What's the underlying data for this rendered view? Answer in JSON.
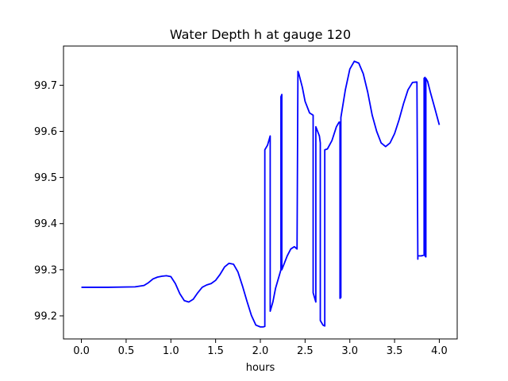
{
  "chart_data": {
    "type": "line",
    "title": "Water Depth h at gauge 120",
    "xlabel": "hours",
    "ylabel": "",
    "xlim": [
      -0.2,
      4.2
    ],
    "ylim": [
      99.15,
      99.785
    ],
    "xticks": [
      0.0,
      0.5,
      1.0,
      1.5,
      2.0,
      2.5,
      3.0,
      3.5,
      4.0
    ],
    "xtick_labels": [
      "0.0",
      "0.5",
      "1.0",
      "1.5",
      "2.0",
      "2.5",
      "3.0",
      "3.5",
      "4.0"
    ],
    "yticks": [
      99.2,
      99.3,
      99.4,
      99.5,
      99.6,
      99.7
    ],
    "ytick_labels": [
      "99.2",
      "99.3",
      "99.4",
      "99.5",
      "99.6",
      "99.7"
    ],
    "grid": false,
    "legend": "none",
    "series": [
      {
        "color": "#0000ff",
        "x": [
          0.0,
          0.3,
          0.6,
          0.7,
          0.75,
          0.8,
          0.85,
          0.9,
          0.95,
          1.0,
          1.05,
          1.1,
          1.15,
          1.2,
          1.25,
          1.3,
          1.35,
          1.4,
          1.45,
          1.5,
          1.55,
          1.6,
          1.65,
          1.7,
          1.75,
          1.8,
          1.85,
          1.9,
          1.95,
          2.0,
          2.03,
          2.05,
          2.05,
          2.08,
          2.11,
          2.11,
          2.14,
          2.17,
          2.2,
          2.23,
          2.23,
          2.24,
          2.24,
          2.26,
          2.3,
          2.34,
          2.38,
          2.41,
          2.42,
          2.43,
          2.47,
          2.5,
          2.55,
          2.59,
          2.59,
          2.62,
          2.62,
          2.66,
          2.67,
          2.67,
          2.7,
          2.72,
          2.72,
          2.75,
          2.8,
          2.85,
          2.88,
          2.89,
          2.89,
          2.9,
          2.9,
          2.95,
          3.0,
          3.05,
          3.1,
          3.15,
          3.2,
          3.25,
          3.3,
          3.35,
          3.4,
          3.45,
          3.5,
          3.55,
          3.6,
          3.65,
          3.7,
          3.75,
          3.76,
          3.76,
          3.8,
          3.83,
          3.83,
          3.84,
          3.84,
          3.85,
          3.85,
          3.87,
          3.9,
          3.95,
          4.0
        ],
        "y": [
          99.262,
          99.262,
          99.263,
          99.266,
          99.272,
          99.28,
          99.284,
          99.286,
          99.287,
          99.285,
          99.27,
          99.248,
          99.233,
          99.23,
          99.236,
          99.25,
          99.262,
          99.267,
          99.27,
          99.277,
          99.29,
          99.306,
          99.314,
          99.312,
          99.295,
          99.265,
          99.232,
          99.201,
          99.18,
          99.176,
          99.176,
          99.177,
          99.56,
          99.57,
          99.59,
          99.21,
          99.23,
          99.26,
          99.28,
          99.3,
          99.675,
          99.68,
          99.3,
          99.31,
          99.33,
          99.345,
          99.35,
          99.345,
          99.73,
          99.725,
          99.695,
          99.665,
          99.64,
          99.635,
          99.25,
          99.23,
          99.61,
          99.59,
          99.575,
          99.19,
          99.18,
          99.178,
          99.56,
          99.562,
          99.58,
          99.61,
          99.62,
          99.62,
          99.238,
          99.24,
          99.63,
          99.69,
          99.735,
          99.752,
          99.748,
          99.725,
          99.685,
          99.635,
          99.6,
          99.575,
          99.567,
          99.575,
          99.595,
          99.625,
          99.66,
          99.69,
          99.706,
          99.707,
          99.323,
          99.33,
          99.33,
          99.332,
          99.715,
          99.717,
          99.33,
          99.328,
          99.715,
          99.708,
          99.685,
          99.65,
          99.614
        ]
      }
    ]
  }
}
